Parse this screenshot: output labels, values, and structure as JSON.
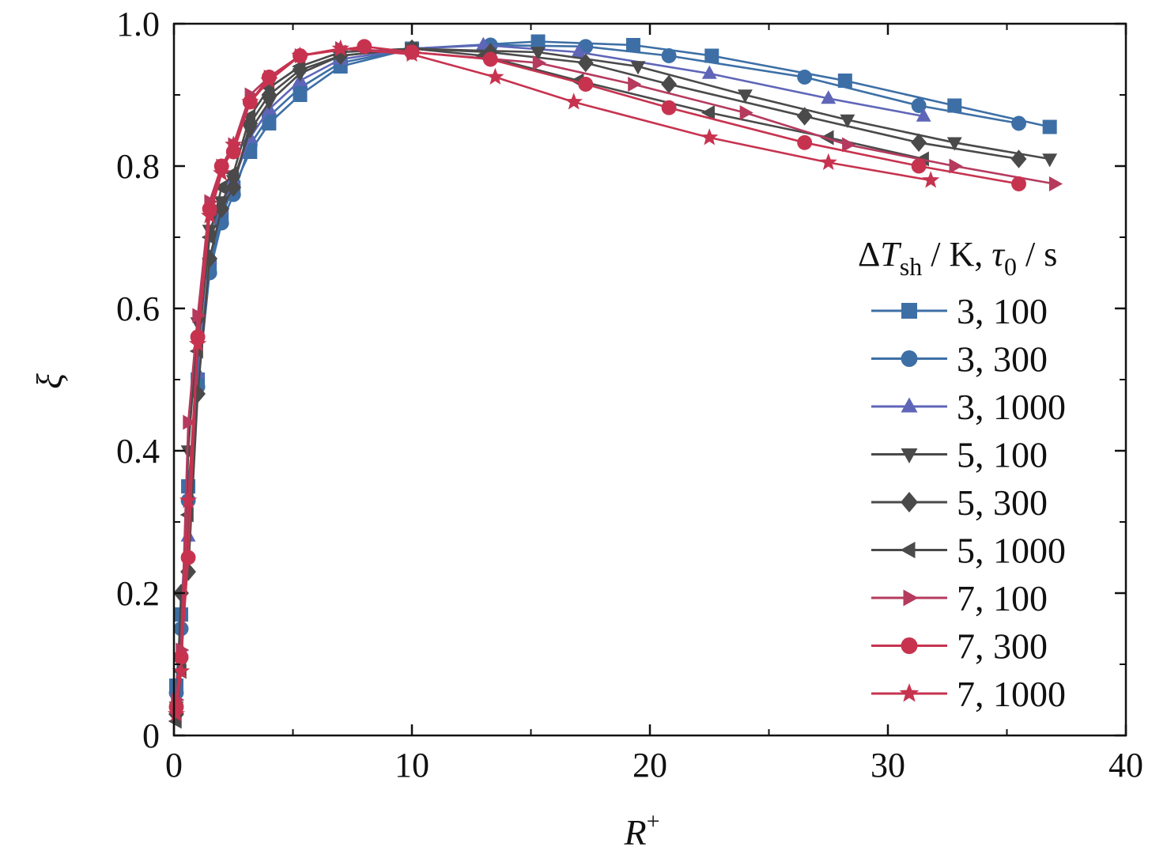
{
  "chart_data": {
    "type": "line",
    "xlabel": "R",
    "xlabel_sup": "+",
    "ylabel": "ξ",
    "xlim": [
      0,
      40
    ],
    "ylim": [
      0,
      1.0
    ],
    "x_ticks": [
      0,
      10,
      20,
      30,
      40
    ],
    "x_tick_labels": [
      "0",
      "10",
      "20",
      "30",
      "40"
    ],
    "y_ticks": [
      0,
      0.2,
      0.4,
      0.6,
      0.8,
      1.0
    ],
    "y_tick_labels": [
      "0",
      "0.2",
      "0.4",
      "0.6",
      "0.8",
      "1.0"
    ],
    "grid": false,
    "legend": {
      "placement": "right",
      "title_parts": {
        "delta": "Δ",
        "T": "T",
        "sh": "sh",
        "mid": " / K, ",
        "tau": "τ",
        "zero": "0",
        "end": "  / s"
      }
    },
    "series": [
      {
        "name": "3, 100",
        "color": "#3d6fa6",
        "marker": "square",
        "x": [
          0.1,
          0.3,
          0.6,
          1.0,
          1.5,
          2.0,
          2.5,
          3.2,
          4.0,
          5.3,
          7.0,
          10.0,
          15.3,
          19.3,
          22.6,
          28.2,
          32.8,
          36.8
        ],
        "y": [
          0.07,
          0.17,
          0.35,
          0.5,
          0.66,
          0.73,
          0.77,
          0.82,
          0.86,
          0.9,
          0.94,
          0.965,
          0.975,
          0.97,
          0.955,
          0.92,
          0.885,
          0.855
        ]
      },
      {
        "name": "3, 300",
        "color": "#3d6fa6",
        "marker": "circle",
        "x": [
          0.1,
          0.3,
          0.6,
          1.0,
          1.5,
          2.0,
          2.5,
          3.2,
          4.0,
          5.3,
          7.0,
          10.0,
          13.3,
          17.3,
          20.8,
          26.5,
          31.3,
          35.5
        ],
        "y": [
          0.06,
          0.15,
          0.33,
          0.49,
          0.65,
          0.72,
          0.76,
          0.83,
          0.87,
          0.91,
          0.945,
          0.965,
          0.97,
          0.968,
          0.955,
          0.925,
          0.885,
          0.86
        ]
      },
      {
        "name": "3, 1000",
        "color": "#5f66b8",
        "marker": "triangle-up",
        "x": [
          0.1,
          0.3,
          0.6,
          1.0,
          1.5,
          2.0,
          2.5,
          3.2,
          4.0,
          5.3,
          7.0,
          10.0,
          13.0,
          17.0,
          22.5,
          27.5,
          31.5
        ],
        "y": [
          0.05,
          0.12,
          0.28,
          0.51,
          0.67,
          0.74,
          0.78,
          0.84,
          0.88,
          0.92,
          0.95,
          0.965,
          0.97,
          0.96,
          0.93,
          0.895,
          0.87
        ]
      },
      {
        "name": "5, 100",
        "color": "#4a4a4a",
        "marker": "triangle-down",
        "x": [
          0.1,
          0.3,
          0.6,
          1.0,
          1.5,
          2.0,
          2.5,
          3.2,
          4.0,
          5.3,
          7.0,
          10.0,
          15.3,
          19.5,
          24.0,
          28.3,
          32.8,
          36.8
        ],
        "y": [
          0.04,
          0.1,
          0.4,
          0.58,
          0.71,
          0.75,
          0.78,
          0.85,
          0.89,
          0.93,
          0.955,
          0.965,
          0.96,
          0.94,
          0.9,
          0.865,
          0.833,
          0.81
        ]
      },
      {
        "name": "5, 300",
        "color": "#4a4a4a",
        "marker": "diamond",
        "x": [
          0.1,
          0.3,
          0.6,
          1.0,
          1.5,
          2.0,
          2.5,
          3.2,
          4.0,
          5.3,
          7.0,
          10.0,
          13.3,
          17.3,
          20.8,
          26.5,
          31.3,
          35.5
        ],
        "y": [
          0.03,
          0.2,
          0.23,
          0.48,
          0.67,
          0.74,
          0.77,
          0.86,
          0.9,
          0.935,
          0.955,
          0.965,
          0.96,
          0.945,
          0.915,
          0.87,
          0.833,
          0.81
        ]
      },
      {
        "name": "5, 1000",
        "color": "#4a4a4a",
        "marker": "triangle-left",
        "x": [
          0.1,
          0.3,
          0.6,
          1.0,
          1.5,
          2.0,
          2.5,
          3.2,
          4.0,
          5.3,
          7.0,
          10.0,
          13.0,
          17.0,
          22.5,
          27.5,
          31.5
        ],
        "y": [
          0.02,
          0.09,
          0.31,
          0.54,
          0.7,
          0.77,
          0.79,
          0.87,
          0.91,
          0.94,
          0.96,
          0.965,
          0.955,
          0.92,
          0.875,
          0.84,
          0.81
        ]
      },
      {
        "name": "7, 100",
        "color": "#b53a5e",
        "marker": "triangle-right",
        "x": [
          0.1,
          0.3,
          0.6,
          1.0,
          1.5,
          2.0,
          2.5,
          3.2,
          4.0,
          5.3,
          7.0,
          10.0,
          15.3,
          19.3,
          24.0,
          28.3,
          32.8,
          37.0
        ],
        "y": [
          0.05,
          0.12,
          0.44,
          0.59,
          0.75,
          0.8,
          0.83,
          0.9,
          0.925,
          0.955,
          0.965,
          0.96,
          0.945,
          0.915,
          0.875,
          0.83,
          0.8,
          0.775
        ]
      },
      {
        "name": "7, 300",
        "color": "#c7334f",
        "marker": "circle",
        "x": [
          0.1,
          0.3,
          0.6,
          1.0,
          1.5,
          2.0,
          2.5,
          3.2,
          4.0,
          5.3,
          8.0,
          10.0,
          13.3,
          17.3,
          20.8,
          26.5,
          31.3,
          35.5
        ],
        "y": [
          0.04,
          0.11,
          0.25,
          0.56,
          0.74,
          0.8,
          0.82,
          0.89,
          0.925,
          0.955,
          0.968,
          0.96,
          0.95,
          0.915,
          0.882,
          0.833,
          0.8,
          0.775
        ]
      },
      {
        "name": "7, 1000",
        "color": "#c7334f",
        "marker": "star",
        "x": [
          0.1,
          0.3,
          0.6,
          1.0,
          1.5,
          2.0,
          2.5,
          3.2,
          4.0,
          5.3,
          7.0,
          10.0,
          13.5,
          16.8,
          22.5,
          27.5,
          31.8
        ],
        "y": [
          0.03,
          0.09,
          0.33,
          0.55,
          0.73,
          0.79,
          0.83,
          0.89,
          0.92,
          0.955,
          0.965,
          0.957,
          0.925,
          0.89,
          0.84,
          0.805,
          0.78
        ]
      }
    ]
  }
}
